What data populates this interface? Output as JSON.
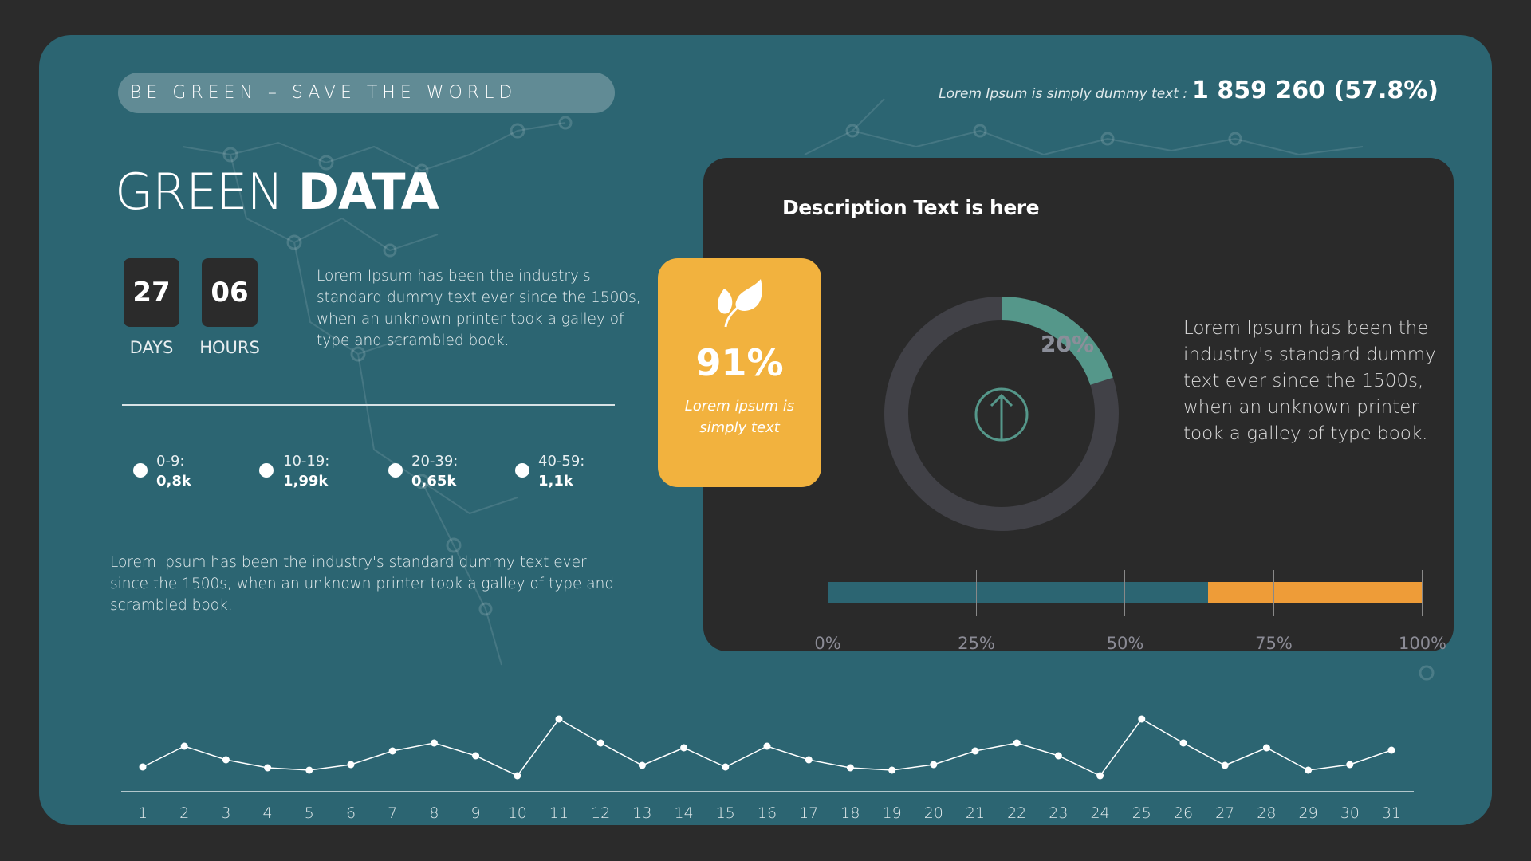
{
  "header": {
    "tagline": "BE GREEN – SAVE THE WORLD",
    "stat_label": "Lorem Ipsum is simply dummy text :",
    "stat_value": "1 859 260 (57.8%)"
  },
  "title": {
    "light": "GREEN",
    "bold": "DATA"
  },
  "countdown": [
    {
      "value": "27",
      "label": "DAYS"
    },
    {
      "value": "06",
      "label": "HOURS"
    }
  ],
  "intro_text": "Lorem Ipsum has been the industry's standard dummy text ever since the 1500s, when an unknown printer took a galley of type and scrambled book.",
  "legend": [
    {
      "range": "0-9:",
      "value": "0,8k"
    },
    {
      "range": "10-19:",
      "value": "1,99k"
    },
    {
      "range": "20-39:",
      "value": "0,65k"
    },
    {
      "range": "40-59:",
      "value": "1,1k"
    }
  ],
  "bottom_text": "Lorem Ipsum has been the industry's standard dummy text ever since the 1500s, when an unknown printer took a galley of type and scrambled book.",
  "panel": {
    "title": "Description Text is here",
    "highlight": {
      "icon": "leaves-icon",
      "value": "91%",
      "caption": "Lorem ipsum is simply text",
      "color": "#f2b23e"
    },
    "donut": {
      "percent": 20,
      "label": "20%",
      "icon": "arrow-up-circle-icon",
      "fill_color": "#55978a",
      "track_color": "#414147"
    },
    "text": "Lorem Ipsum has been the industry's standard dummy text ever since the 1500s, when an unknown printer took a galley of type book.",
    "progress": {
      "value_percent": 64,
      "fill_color": "#2c6572",
      "rest_color": "#ee9c38",
      "ticks": [
        "0%",
        "25%",
        "50%",
        "75%",
        "100%"
      ]
    }
  },
  "chart_data": {
    "type": "line",
    "categories": [
      "1",
      "2",
      "3",
      "4",
      "5",
      "6",
      "7",
      "8",
      "9",
      "10",
      "11",
      "12",
      "13",
      "14",
      "15",
      "16",
      "17",
      "18",
      "19",
      "20",
      "21",
      "22",
      "23",
      "24",
      "25",
      "26",
      "27",
      "28",
      "29",
      "30",
      "31"
    ],
    "values": [
      31,
      57,
      40,
      30,
      27,
      34,
      51,
      61,
      45,
      20,
      91,
      61,
      33,
      55,
      31,
      57,
      40,
      30,
      27,
      34,
      51,
      61,
      45,
      20,
      91,
      61,
      33,
      55,
      27,
      34,
      52
    ],
    "ylim": [
      0,
      100
    ],
    "grid": false
  }
}
